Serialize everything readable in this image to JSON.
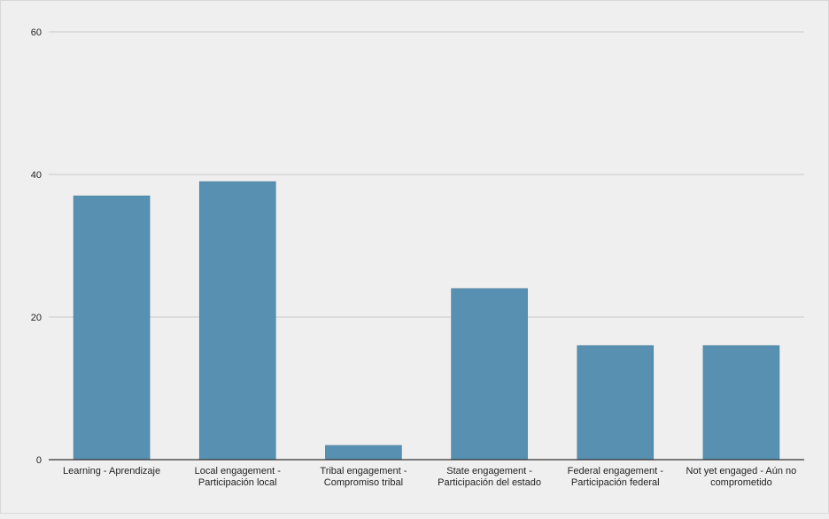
{
  "chart_data": {
    "type": "bar",
    "categories": [
      [
        "Learning - Aprendizaje"
      ],
      [
        "Local engagement -",
        "Participación local"
      ],
      [
        "Tribal engagement -",
        "Compromiso tribal"
      ],
      [
        "State engagement -",
        "Participación del estado"
      ],
      [
        "Federal engagement -",
        "Participación federal"
      ],
      [
        "Not yet engaged - Aún no",
        "comprometido"
      ]
    ],
    "values": [
      37,
      39,
      2,
      24,
      16,
      16
    ],
    "ylim": [
      0,
      60
    ],
    "yticks": [
      "0",
      "20",
      "40",
      "60"
    ],
    "title": "",
    "xlabel": "",
    "ylabel": "",
    "grid": true,
    "bar_color": "#5790b0",
    "grid_color": "#c8c8c8",
    "axis_color": "#333333"
  }
}
